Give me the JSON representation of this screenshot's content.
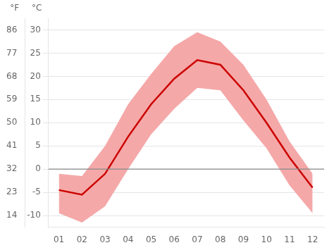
{
  "chart_data": {
    "type": "line",
    "x": [
      1,
      2,
      3,
      4,
      5,
      6,
      7,
      8,
      9,
      10,
      11,
      12
    ],
    "xlim": [
      0.55,
      12.5
    ],
    "xticks": [
      {
        "value": 1,
        "label": "01"
      },
      {
        "value": 2,
        "label": "02"
      },
      {
        "value": 3,
        "label": "03"
      },
      {
        "value": 4,
        "label": "04"
      },
      {
        "value": 5,
        "label": "05"
      },
      {
        "value": 6,
        "label": "06"
      },
      {
        "value": 7,
        "label": "07"
      },
      {
        "value": 8,
        "label": "08"
      },
      {
        "value": 9,
        "label": "09"
      },
      {
        "value": 10,
        "label": "10"
      },
      {
        "value": 11,
        "label": "11"
      },
      {
        "value": 12,
        "label": "12"
      }
    ],
    "series": [
      {
        "type": "area",
        "color": "#f5a8a8",
        "values": [
          -1.0,
          -1.5,
          5.0,
          14.0,
          20.5,
          26.5,
          29.5,
          27.5,
          22.5,
          15.0,
          6.0,
          -1.0
        ],
        "low": [
          -9.5,
          -11.5,
          -8.0,
          0.0,
          7.5,
          13.0,
          17.5,
          17.0,
          10.5,
          4.5,
          -3.5,
          -9.5
        ]
      },
      {
        "type": "line",
        "color": "#cc0000",
        "values": [
          -4.5,
          -5.5,
          -1.0,
          7.0,
          14.0,
          19.5,
          23.5,
          22.5,
          17.0,
          10.0,
          2.5,
          -4.0
        ]
      }
    ],
    "ylabel": "°C",
    "ylim": [
      -12.5,
      32.5
    ],
    "yticks": [
      -10,
      -5,
      0,
      5,
      10,
      15,
      20,
      25,
      30
    ],
    "y2label": "°F",
    "y2lim": [
      9.5,
      90.5
    ],
    "y2ticks": [
      14,
      23,
      32,
      41,
      50,
      59,
      68,
      77,
      86
    ],
    "annotations": [
      {
        "type": "line",
        "y": 0,
        "color": "#888888"
      }
    ],
    "grid": "y"
  }
}
